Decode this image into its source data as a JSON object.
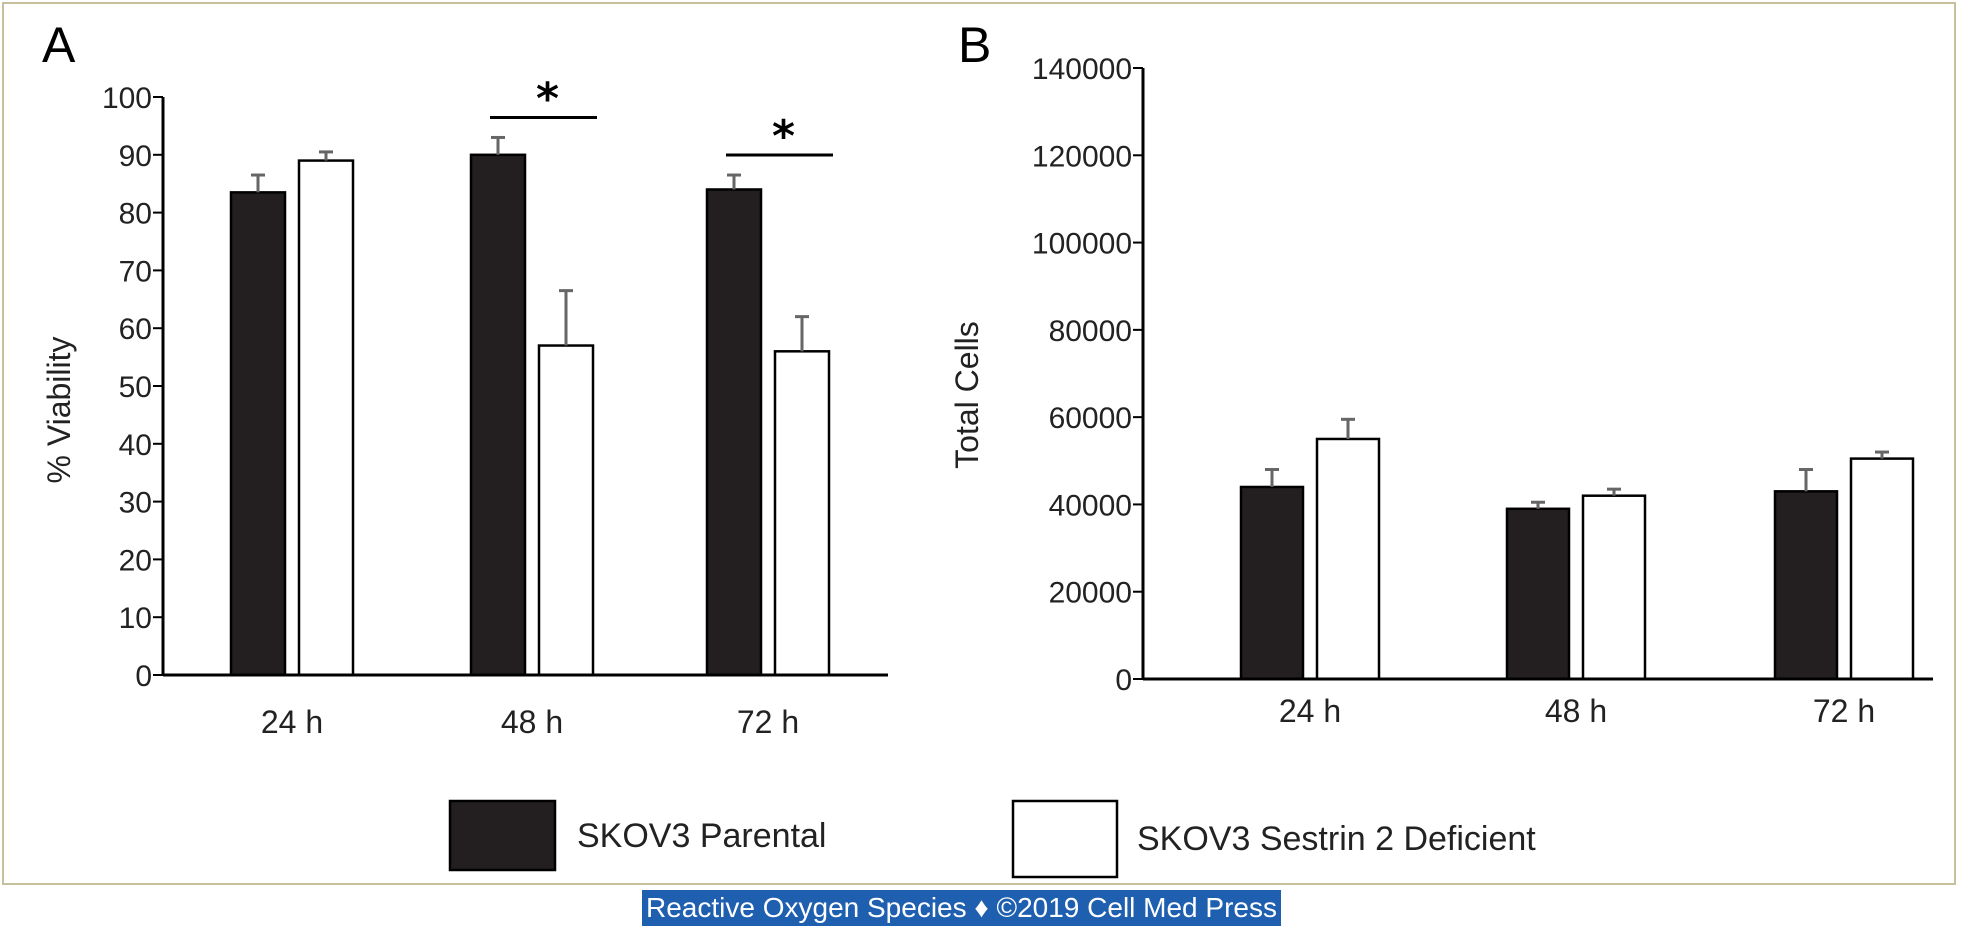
{
  "legend": {
    "items": [
      {
        "label": "SKOV3 Parental",
        "color": "#231f20"
      },
      {
        "label": "SKOV3 Sestrin 2 Deficient",
        "color": "#ffffff"
      }
    ]
  },
  "footer": {
    "text": "Reactive Oxygen Species ♦ ©2019 Cell Med Press"
  },
  "chart_data": [
    {
      "type": "bar",
      "panel": "A",
      "title": "",
      "xlabel": "",
      "ylabel": "% Viability",
      "ylim": [
        0,
        100
      ],
      "yticks": [
        0,
        10,
        20,
        30,
        40,
        50,
        60,
        70,
        80,
        90,
        100
      ],
      "categories": [
        "24 h",
        "48 h",
        "72 h"
      ],
      "series": [
        {
          "name": "SKOV3 Parental",
          "values": [
            83.5,
            90,
            84
          ],
          "errors": [
            3,
            3,
            2.5
          ]
        },
        {
          "name": "SKOV3 Sestrin 2 Deficient",
          "values": [
            89,
            57,
            56
          ],
          "errors": [
            1.5,
            9.5,
            6
          ]
        }
      ],
      "significance": [
        {
          "category": "48 h",
          "marker": "*"
        },
        {
          "category": "72 h",
          "marker": "*"
        }
      ],
      "grid": false
    },
    {
      "type": "bar",
      "panel": "B",
      "title": "",
      "xlabel": "",
      "ylabel": "Total Cells",
      "ylim": [
        0,
        140000
      ],
      "yticks": [
        0,
        20000,
        40000,
        60000,
        80000,
        100000,
        120000,
        140000
      ],
      "categories": [
        "24 h",
        "48 h",
        "72 h"
      ],
      "series": [
        {
          "name": "SKOV3 Parental",
          "values": [
            44000,
            39000,
            43000
          ],
          "errors": [
            4000,
            1500,
            5000
          ]
        },
        {
          "name": "SKOV3 Sestrin 2 Deficient",
          "values": [
            55000,
            42000,
            50500
          ],
          "errors": [
            4500,
            1500,
            1500
          ]
        }
      ],
      "grid": false
    }
  ]
}
